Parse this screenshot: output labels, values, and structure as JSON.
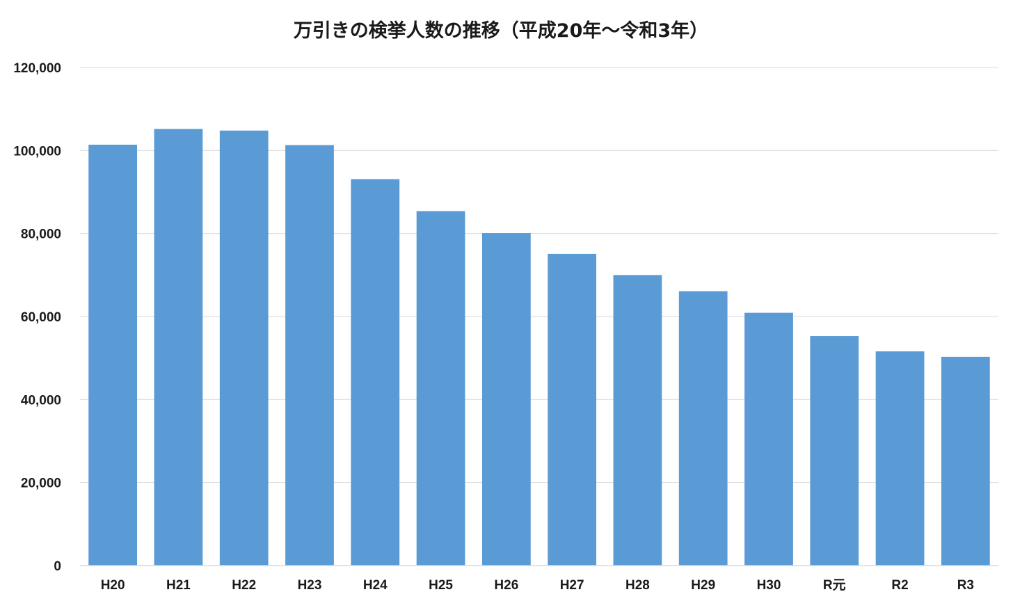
{
  "chart_data": {
    "type": "bar",
    "title": "万引きの検挙人数の推移（平成20年～令和3年）",
    "xlabel": "",
    "ylabel": "",
    "categories": [
      "H20",
      "H21",
      "H22",
      "H23",
      "H24",
      "H25",
      "H26",
      "H27",
      "H28",
      "H29",
      "H30",
      "R元",
      "R2",
      "R3"
    ],
    "series": [
      {
        "values": [
          101400,
          105200,
          104800,
          101300,
          93100,
          85400,
          80100,
          75100,
          70000,
          66100,
          60900,
          55300,
          51600,
          50300
        ]
      }
    ],
    "ylim": [
      0,
      120000
    ],
    "yticks": [
      0,
      20000,
      40000,
      60000,
      80000,
      100000,
      120000
    ],
    "ytick_labels": [
      "0",
      "20,000",
      "40,000",
      "60,000",
      "80,000",
      "100,000",
      "120,000"
    ],
    "grid": true,
    "legend": "none",
    "colors": {
      "bar": "#5b9bd5",
      "grid": "#d9d9d9",
      "text": "#1a1a1a"
    }
  }
}
